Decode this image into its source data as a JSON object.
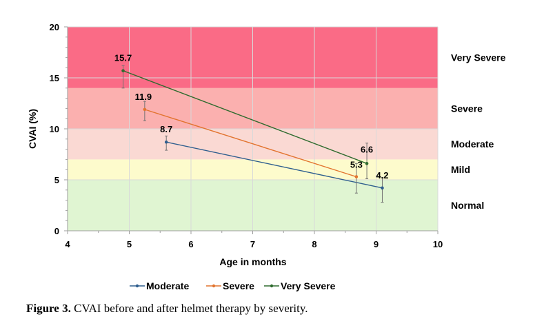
{
  "chart_data": {
    "type": "line",
    "xlabel": "Age in months",
    "ylabel": "CVAI (%)",
    "xlim": [
      4,
      10
    ],
    "ylim": [
      0,
      20
    ],
    "x_ticks": [
      "4",
      "5",
      "6",
      "7",
      "8",
      "9",
      "10"
    ],
    "y_ticks": [
      "0",
      "5",
      "10",
      "15",
      "20"
    ],
    "grid": true,
    "legend_position": "bottom",
    "bands": [
      {
        "label": "Normal",
        "from": 0,
        "to": 5,
        "color": "#e0f5d2"
      },
      {
        "label": "Mild",
        "from": 5,
        "to": 7,
        "color": "#fdfbcc"
      },
      {
        "label": "Moderate",
        "from": 7,
        "to": 10,
        "color": "#fad9d3"
      },
      {
        "label": "Severe",
        "from": 10,
        "to": 14,
        "color": "#fbb0af"
      },
      {
        "label": "Very Severe",
        "from": 14,
        "to": 20,
        "color": "#fa6b86"
      }
    ],
    "series": [
      {
        "name": "Moderate",
        "color": "#2e5e8e",
        "points": [
          {
            "x": 5.6,
            "y": 8.7,
            "label": "8.7",
            "err_low": 0.8,
            "err_high": 0.6
          },
          {
            "x": 9.1,
            "y": 4.2,
            "label": "4.2",
            "err_low": 1.4,
            "err_high": 1.0
          }
        ]
      },
      {
        "name": "Severe",
        "color": "#e2742f",
        "points": [
          {
            "x": 5.25,
            "y": 11.9,
            "label": "11.9",
            "err_low": 1.1,
            "err_high": 0.8
          },
          {
            "x": 8.68,
            "y": 5.3,
            "label": "5.3",
            "err_low": 1.6,
            "err_high": 1.3
          }
        ]
      },
      {
        "name": "Very Severe",
        "color": "#2e6b2e",
        "points": [
          {
            "x": 4.9,
            "y": 15.7,
            "label": "15.7",
            "err_low": 1.7,
            "err_high": 0.5
          },
          {
            "x": 8.85,
            "y": 6.6,
            "label": "6.6",
            "err_low": 1.5,
            "err_high": 2.0
          }
        ]
      }
    ]
  },
  "caption": {
    "label": "Figure 3.",
    "text": " CVAI before and after helmet therapy by severity."
  }
}
